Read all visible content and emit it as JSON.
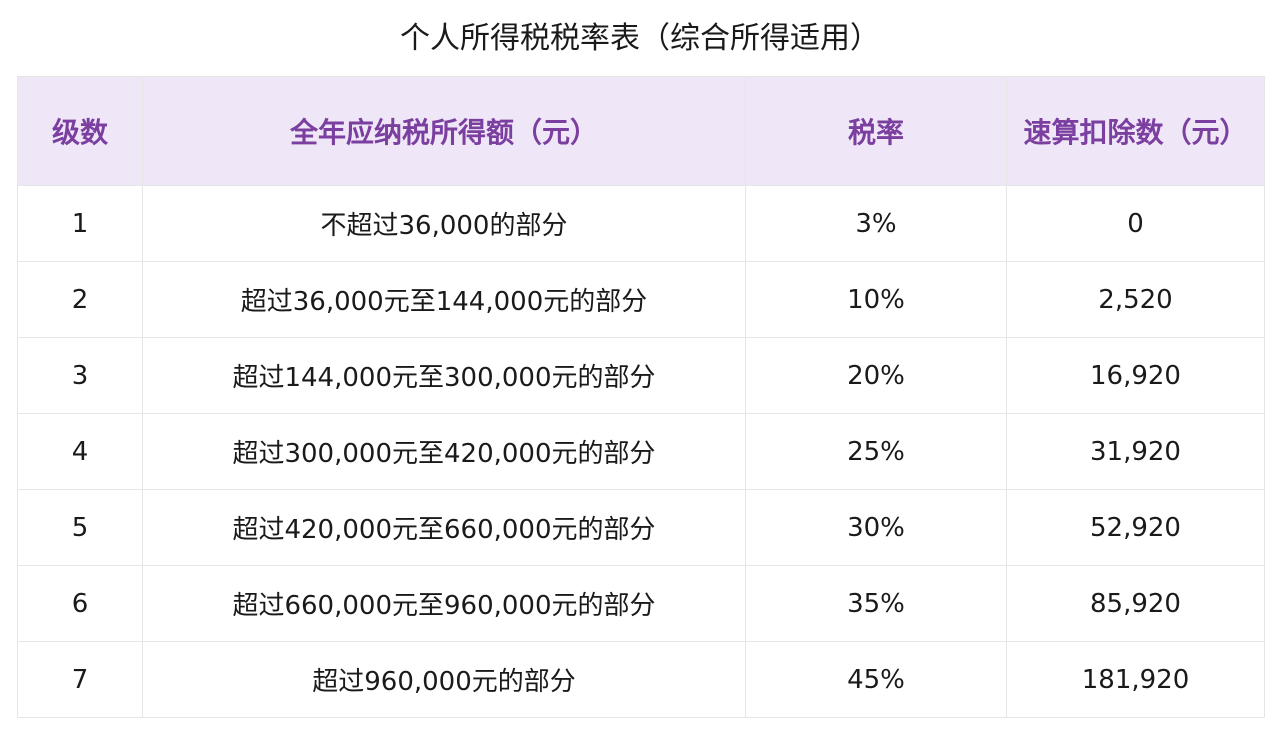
{
  "title": "个人所得税税率表（综合所得适用）",
  "table": {
    "headers": [
      "级数",
      "全年应纳税所得额（元）",
      "税率",
      "速算扣除数（元）"
    ],
    "rows": [
      [
        "1",
        "不超过36,000的部分",
        "3%",
        "0"
      ],
      [
        "2",
        "超过36,000元至144,000元的部分",
        "10%",
        "2,520"
      ],
      [
        "3",
        "超过144,000元至300,000元的部分",
        "20%",
        "16,920"
      ],
      [
        "4",
        "超过300,000元至420,000元的部分",
        "25%",
        "31,920"
      ],
      [
        "5",
        "超过420,000元至660,000元的部分",
        "30%",
        "52,920"
      ],
      [
        "6",
        "超过660,000元至960,000元的部分",
        "35%",
        "85,920"
      ],
      [
        "7",
        "超过960,000元的部分",
        "45%",
        "181,920"
      ]
    ]
  },
  "colors": {
    "header_bg": "#efe7f7",
    "header_text": "#7b3fa0",
    "border": "#e6e6e6",
    "body_text": "#1a1a1a"
  }
}
